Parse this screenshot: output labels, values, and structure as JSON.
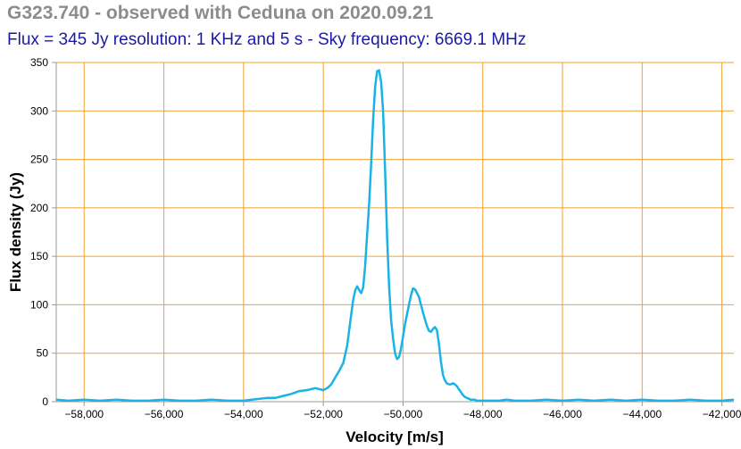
{
  "chart_data": {
    "type": "line",
    "title": "G323.740 - observed with Ceduna on 2020.09.21",
    "subtitle": "Flux = 345 Jy resolution: 1 KHz and 5 s - Sky frequency: 6669.1 MHz",
    "xlabel": "Velocity [m/s]",
    "ylabel": "Flux density (Jy)",
    "xlim": [
      -58700,
      -41700
    ],
    "ylim": [
      0,
      350
    ],
    "xticks": [
      -58000,
      -56000,
      -54000,
      -52000,
      -50000,
      -48000,
      -46000,
      -44000,
      -42000
    ],
    "xtick_labels": [
      "−58,000",
      "−56,000",
      "−54,000",
      "−52,000",
      "−50,000",
      "−48,000",
      "−46,000",
      "−44,000",
      "−42,000"
    ],
    "yticks": [
      0,
      50,
      100,
      150,
      200,
      250,
      300,
      350
    ],
    "ytick_labels": [
      "0",
      "50",
      "100",
      "150",
      "200",
      "250",
      "300",
      "350"
    ],
    "grid": true,
    "colors": {
      "line": "#1ab3e6",
      "grid": "#f0a030",
      "axis": "#999999"
    },
    "series": [
      {
        "name": "",
        "x": [
          -58700,
          -58400,
          -58000,
          -57600,
          -57200,
          -56800,
          -56400,
          -56000,
          -55600,
          -55200,
          -54800,
          -54400,
          -54000,
          -53600,
          -53400,
          -53200,
          -53000,
          -52800,
          -52600,
          -52400,
          -52200,
          -52000,
          -51900,
          -51800,
          -51700,
          -51600,
          -51500,
          -51400,
          -51300,
          -51250,
          -51200,
          -51150,
          -51100,
          -51050,
          -51000,
          -50950,
          -50900,
          -50850,
          -50800,
          -50750,
          -50700,
          -50650,
          -50600,
          -50550,
          -50500,
          -50450,
          -50400,
          -50350,
          -50300,
          -50250,
          -50200,
          -50150,
          -50100,
          -50050,
          -50000,
          -49950,
          -49900,
          -49850,
          -49800,
          -49750,
          -49700,
          -49650,
          -49600,
          -49550,
          -49500,
          -49450,
          -49400,
          -49350,
          -49300,
          -49250,
          -49200,
          -49150,
          -49100,
          -49050,
          -49000,
          -48950,
          -48900,
          -48850,
          -48800,
          -48750,
          -48700,
          -48650,
          -48600,
          -48550,
          -48500,
          -48450,
          -48400,
          -48350,
          -48300,
          -48250,
          -48200,
          -48150,
          -48100,
          -48050,
          -48000,
          -47950,
          -47900,
          -47850,
          -47800,
          -47700,
          -47600,
          -47400,
          -47200,
          -46800,
          -46400,
          -46000,
          -45600,
          -45200,
          -44800,
          -44400,
          -44000,
          -43600,
          -43200,
          -42800,
          -42400,
          -42000,
          -41700
        ],
        "values": [
          2,
          1,
          2,
          1,
          2,
          1,
          1,
          2,
          1,
          1,
          2,
          1,
          1,
          3,
          4,
          4,
          6,
          8,
          11,
          12,
          14,
          12,
          14,
          18,
          25,
          32,
          40,
          58,
          90,
          105,
          115,
          119,
          115,
          112,
          118,
          140,
          172,
          205,
          245,
          290,
          325,
          341,
          342,
          330,
          300,
          240,
          170,
          120,
          85,
          65,
          50,
          44,
          46,
          55,
          67,
          80,
          90,
          100,
          110,
          117,
          116,
          112,
          108,
          100,
          92,
          85,
          78,
          73,
          72,
          75,
          77,
          74,
          60,
          42,
          28,
          22,
          19,
          18,
          18,
          19,
          18,
          16,
          13,
          10,
          7,
          5,
          4,
          3,
          2,
          2,
          2,
          1,
          1,
          1,
          1,
          1,
          1,
          1,
          1,
          1,
          1,
          2,
          1,
          1,
          2,
          1,
          2,
          1,
          2,
          1,
          2,
          1,
          1,
          2,
          1,
          1,
          2
        ]
      }
    ]
  }
}
